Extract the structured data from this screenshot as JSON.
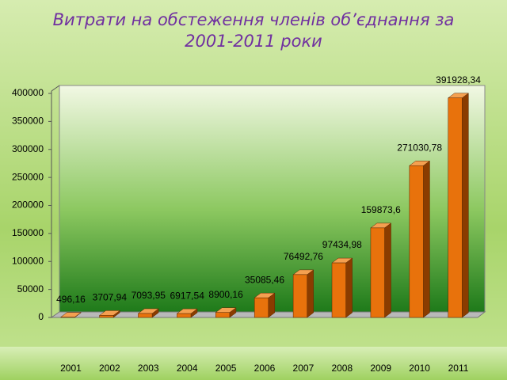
{
  "chart_data": {
    "type": "bar",
    "title": "Витрати на обстеження членів об’єднання за 2001-2011 роки",
    "categories": [
      "2001",
      "2002",
      "2003",
      "2004",
      "2005",
      "2006",
      "2007",
      "2008",
      "2009",
      "2010",
      "2011"
    ],
    "values": [
      496.16,
      3707.94,
      7093.95,
      6917.54,
      8900.16,
      35085.46,
      76492.76,
      97434.98,
      159873.6,
      271030.78,
      391928.34
    ],
    "value_labels": [
      "496,16",
      "3707,94",
      "7093,95",
      "6917,54",
      "8900,16",
      "35085,46",
      "76492,76",
      "97434,98",
      "159873,6",
      "271030,78",
      "391928,34"
    ],
    "color": "#e8720c",
    "ylim": [
      0,
      400000
    ],
    "yticks": [
      0,
      50000,
      100000,
      150000,
      200000,
      250000,
      300000,
      350000,
      400000
    ]
  }
}
